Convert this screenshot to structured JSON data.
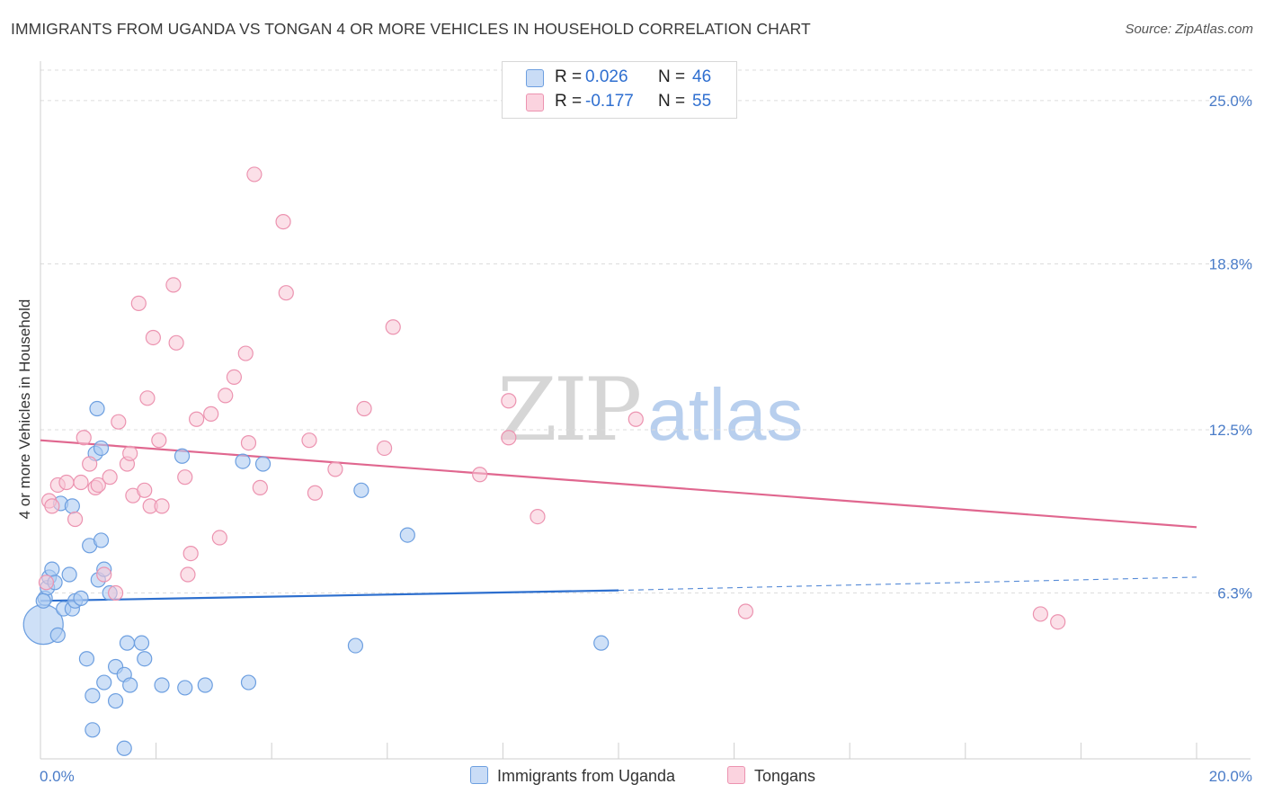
{
  "header": {
    "title": "IMMIGRANTS FROM UGANDA VS TONGAN 4 OR MORE VEHICLES IN HOUSEHOLD CORRELATION CHART",
    "source": "Source: ZipAtlas.com"
  },
  "watermark": {
    "zip": "ZIP",
    "atlas": "atlas"
  },
  "legend": {
    "rows": [
      {
        "r_key": "R =",
        "r_value": "0.026",
        "n_key": "N =",
        "n_value": "46",
        "color": "#aecbf2"
      },
      {
        "r_key": "R =",
        "r_value": "-0.177",
        "n_key": "N =",
        "n_value": "55",
        "color": "#f7bfd0"
      }
    ]
  },
  "bottom_legend": {
    "uganda": "Immigrants from Uganda",
    "tongans": "Tongans"
  },
  "colors": {
    "uganda_fill": "#aecbf2",
    "uganda_stroke": "#6d9fe0",
    "uganda_line": "#2d6fce",
    "tongan_fill": "#f7c6d5",
    "tongan_stroke": "#ec93b0",
    "tongan_line": "#e0678f",
    "tick_text": "#4a7cc8"
  },
  "chart_data": {
    "type": "scatter",
    "title": "IMMIGRANTS FROM UGANDA VS TONGAN 4 OR MORE VEHICLES IN HOUSEHOLD CORRELATION CHART",
    "xlabel": "",
    "ylabel": "4 or more Vehicles in Household",
    "xlim": [
      0,
      20
    ],
    "ylim": [
      0,
      26.5
    ],
    "x_tick_labels": [
      "0.0%",
      "20.0%"
    ],
    "y_ticks": [
      6.3,
      12.5,
      18.8,
      25.0
    ],
    "y_tick_labels": [
      "6.3%",
      "12.5%",
      "18.8%",
      "25.0%"
    ],
    "grid": true,
    "legend_position": "top-center",
    "series": [
      {
        "name": "Immigrants from Uganda",
        "points": [
          [
            0.05,
            5.1
          ],
          [
            0.08,
            6.1
          ],
          [
            0.12,
            6.5
          ],
          [
            0.15,
            6.9
          ],
          [
            0.2,
            7.2
          ],
          [
            0.25,
            6.7
          ],
          [
            0.3,
            4.7
          ],
          [
            0.4,
            5.7
          ],
          [
            0.55,
            5.7
          ],
          [
            0.6,
            6.0
          ],
          [
            0.7,
            6.1
          ],
          [
            0.5,
            7.0
          ],
          [
            0.35,
            9.7
          ],
          [
            0.55,
            9.6
          ],
          [
            0.85,
            8.1
          ],
          [
            1.0,
            6.8
          ],
          [
            1.1,
            7.2
          ],
          [
            1.2,
            6.3
          ],
          [
            1.05,
            8.3
          ],
          [
            0.95,
            11.6
          ],
          [
            1.05,
            11.8
          ],
          [
            0.98,
            13.3
          ],
          [
            2.45,
            11.5
          ],
          [
            3.5,
            11.3
          ],
          [
            3.85,
            11.2
          ],
          [
            5.55,
            10.2
          ],
          [
            6.35,
            8.5
          ],
          [
            0.8,
            3.8
          ],
          [
            0.9,
            2.4
          ],
          [
            1.1,
            2.9
          ],
          [
            1.3,
            3.5
          ],
          [
            1.45,
            3.2
          ],
          [
            1.55,
            2.8
          ],
          [
            1.5,
            4.4
          ],
          [
            1.75,
            4.4
          ],
          [
            1.8,
            3.8
          ],
          [
            2.1,
            2.8
          ],
          [
            2.5,
            2.7
          ],
          [
            2.85,
            2.8
          ],
          [
            3.6,
            2.9
          ],
          [
            1.3,
            2.2
          ],
          [
            0.9,
            1.1
          ],
          [
            1.45,
            0.4
          ],
          [
            5.45,
            4.3
          ],
          [
            9.7,
            4.4
          ],
          [
            0.05,
            6.0
          ]
        ],
        "r": 0.026,
        "n": 46,
        "trend_line": {
          "x": [
            0.0,
            10.0
          ],
          "y": [
            6.0,
            6.4
          ],
          "dashed_extension": {
            "x": [
              10.0,
              20.0
            ],
            "y": [
              6.4,
              6.9
            ]
          }
        }
      },
      {
        "name": "Tongans",
        "points": [
          [
            0.1,
            6.7
          ],
          [
            0.15,
            9.8
          ],
          [
            0.2,
            9.6
          ],
          [
            0.3,
            10.4
          ],
          [
            0.45,
            10.5
          ],
          [
            0.6,
            9.1
          ],
          [
            0.7,
            10.5
          ],
          [
            0.75,
            12.2
          ],
          [
            0.85,
            11.2
          ],
          [
            0.95,
            10.3
          ],
          [
            1.0,
            10.4
          ],
          [
            1.2,
            10.7
          ],
          [
            1.1,
            7.0
          ],
          [
            1.3,
            6.3
          ],
          [
            1.35,
            12.8
          ],
          [
            1.5,
            11.2
          ],
          [
            1.55,
            11.6
          ],
          [
            1.6,
            10.0
          ],
          [
            1.8,
            10.2
          ],
          [
            1.85,
            13.7
          ],
          [
            1.9,
            9.6
          ],
          [
            2.05,
            12.1
          ],
          [
            2.1,
            9.6
          ],
          [
            1.7,
            17.3
          ],
          [
            1.95,
            16.0
          ],
          [
            2.35,
            15.8
          ],
          [
            2.3,
            18.0
          ],
          [
            2.5,
            10.7
          ],
          [
            2.55,
            7.0
          ],
          [
            2.6,
            7.8
          ],
          [
            2.7,
            12.9
          ],
          [
            2.95,
            13.1
          ],
          [
            3.1,
            8.4
          ],
          [
            3.2,
            13.8
          ],
          [
            3.35,
            14.5
          ],
          [
            3.55,
            15.4
          ],
          [
            3.6,
            12.0
          ],
          [
            3.8,
            10.3
          ],
          [
            3.7,
            22.2
          ],
          [
            4.2,
            20.4
          ],
          [
            4.25,
            17.7
          ],
          [
            4.65,
            12.1
          ],
          [
            4.75,
            10.1
          ],
          [
            5.1,
            11.0
          ],
          [
            5.6,
            13.3
          ],
          [
            5.95,
            11.8
          ],
          [
            6.1,
            16.4
          ],
          [
            7.6,
            10.8
          ],
          [
            8.1,
            12.2
          ],
          [
            8.1,
            13.6
          ],
          [
            8.6,
            9.2
          ],
          [
            10.3,
            12.9
          ],
          [
            12.2,
            5.6
          ],
          [
            17.3,
            5.5
          ],
          [
            17.6,
            5.2
          ]
        ],
        "r": -0.177,
        "n": 55,
        "trend_line": {
          "x": [
            0.0,
            20.0
          ],
          "y": [
            12.1,
            8.8
          ]
        }
      }
    ]
  }
}
